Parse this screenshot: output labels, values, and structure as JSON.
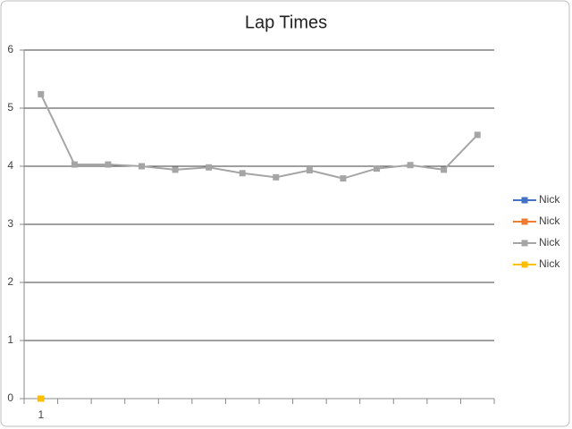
{
  "chart_data": {
    "type": "line",
    "title": "Lap Times",
    "categories": [
      "1",
      null,
      null,
      null,
      null,
      null,
      null,
      null,
      null,
      null,
      null,
      null,
      null,
      null
    ],
    "series": [
      {
        "name": "Nick",
        "color": "#4472c4",
        "values": [
          0,
          null,
          null,
          null,
          null,
          null,
          null,
          null,
          null,
          null,
          null,
          null,
          null,
          null
        ]
      },
      {
        "name": "Nick",
        "color": "#ed7d31",
        "values": [
          0,
          null,
          null,
          null,
          null,
          null,
          null,
          null,
          null,
          null,
          null,
          null,
          null,
          null
        ]
      },
      {
        "name": "Nick",
        "color": "#a5a5a5",
        "values": [
          5.24,
          4.03,
          4.03,
          4.0,
          3.94,
          3.98,
          3.88,
          3.81,
          3.93,
          3.79,
          3.96,
          4.02,
          3.94,
          4.54
        ]
      },
      {
        "name": "Nick",
        "color": "#ffc000",
        "values": [
          0,
          null,
          null,
          null,
          null,
          null,
          null,
          null,
          null,
          null,
          null,
          null,
          null,
          null
        ]
      }
    ],
    "ylim": [
      0,
      6
    ],
    "yticks": [
      0,
      1,
      2,
      3,
      4,
      5,
      6
    ],
    "grid": true,
    "legend": "right"
  }
}
